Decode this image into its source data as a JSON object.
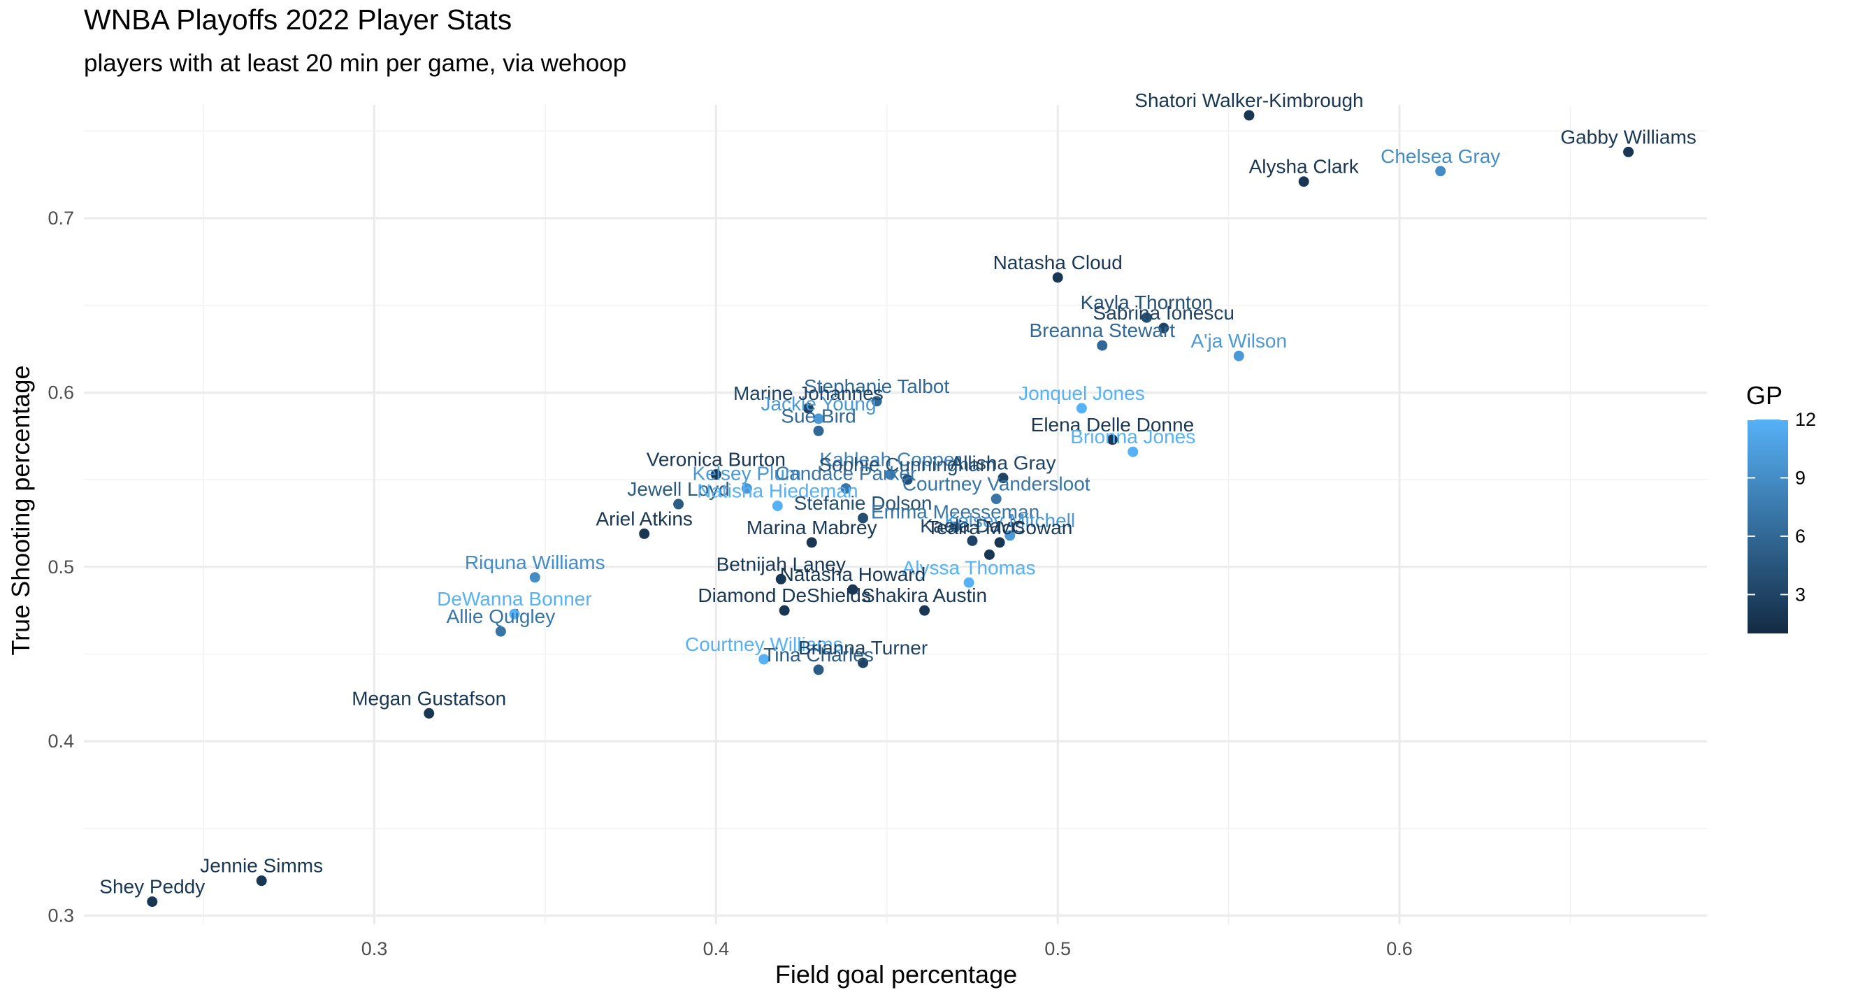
{
  "chart_data": {
    "type": "scatter",
    "title": "WNBA Playoffs 2022 Player Stats",
    "subtitle": "players with at least 20 min per game, via wehoop",
    "xlabel": "Field goal percentage",
    "ylabel": "True Shooting percentage",
    "xlim": [
      0.215,
      0.69
    ],
    "ylim": [
      0.295,
      0.765
    ],
    "x_ticks": [
      0.3,
      0.4,
      0.5,
      0.6
    ],
    "x_tick_labels": [
      "0.3",
      "0.4",
      "0.5",
      "0.6"
    ],
    "y_ticks": [
      0.3,
      0.4,
      0.5,
      0.6,
      0.7
    ],
    "y_tick_labels": [
      "0.3",
      "0.4",
      "0.5",
      "0.6",
      "0.7"
    ],
    "grid": true,
    "color_legend": {
      "title": "GP",
      "range": [
        1,
        12
      ],
      "ticks": [
        3,
        6,
        9,
        12
      ],
      "tick_labels": [
        "3",
        "6",
        "9",
        "12"
      ],
      "low_color": "#132B43",
      "high_color": "#56B1F7",
      "position": "right"
    },
    "points": [
      {
        "name": "Shatori Walker-Kimbrough",
        "x": 0.556,
        "y": 0.759,
        "gp": 2
      },
      {
        "name": "Gabby Williams",
        "x": 0.667,
        "y": 0.738,
        "gp": 2
      },
      {
        "name": "Chelsea Gray",
        "x": 0.612,
        "y": 0.727,
        "gp": 9
      },
      {
        "name": "Alysha Clark",
        "x": 0.572,
        "y": 0.721,
        "gp": 2
      },
      {
        "name": "Natasha Cloud",
        "x": 0.5,
        "y": 0.666,
        "gp": 2
      },
      {
        "name": "Kayla Thornton",
        "x": 0.526,
        "y": 0.643,
        "gp": 4
      },
      {
        "name": "Sabrina Ionescu",
        "x": 0.531,
        "y": 0.637,
        "gp": 3
      },
      {
        "name": "Breanna Stewart",
        "x": 0.513,
        "y": 0.627,
        "gp": 6
      },
      {
        "name": "A'ja Wilson",
        "x": 0.553,
        "y": 0.621,
        "gp": 10
      },
      {
        "name": "Stephanie Talbot",
        "x": 0.447,
        "y": 0.595,
        "gp": 6
      },
      {
        "name": "Marine Johannes",
        "x": 0.427,
        "y": 0.591,
        "gp": 3
      },
      {
        "name": "Jackie Young",
        "x": 0.43,
        "y": 0.585,
        "gp": 10
      },
      {
        "name": "Sue Bird",
        "x": 0.43,
        "y": 0.578,
        "gp": 6
      },
      {
        "name": "Jonquel Jones",
        "x": 0.507,
        "y": 0.591,
        "gp": 12
      },
      {
        "name": "Elena Delle Donne",
        "x": 0.516,
        "y": 0.573,
        "gp": 2
      },
      {
        "name": "Brionna Jones",
        "x": 0.522,
        "y": 0.566,
        "gp": 12
      },
      {
        "name": "Veronica Burton",
        "x": 0.4,
        "y": 0.553,
        "gp": 2
      },
      {
        "name": "Kahleah Copper",
        "x": 0.451,
        "y": 0.553,
        "gp": 8
      },
      {
        "name": "Sophie Cunningham",
        "x": 0.456,
        "y": 0.55,
        "gp": 4
      },
      {
        "name": "Allisha Gray",
        "x": 0.484,
        "y": 0.551,
        "gp": 3
      },
      {
        "name": "Kelsey Plum",
        "x": 0.409,
        "y": 0.545,
        "gp": 10
      },
      {
        "name": "Candace Parker",
        "x": 0.438,
        "y": 0.545,
        "gp": 7
      },
      {
        "name": "Courtney Vandersloot",
        "x": 0.482,
        "y": 0.539,
        "gp": 7
      },
      {
        "name": "Jewell Loyd",
        "x": 0.389,
        "y": 0.536,
        "gp": 5
      },
      {
        "name": "Natisha Hiedeman",
        "x": 0.418,
        "y": 0.535,
        "gp": 12
      },
      {
        "name": "Stefanie Dolson",
        "x": 0.443,
        "y": 0.528,
        "gp": 4
      },
      {
        "name": "Emma Meesseman",
        "x": 0.47,
        "y": 0.523,
        "gp": 7
      },
      {
        "name": "Kelsey Mitchell",
        "x": 0.486,
        "y": 0.518,
        "gp": 10
      },
      {
        "name": "Kaela Davis",
        "x": 0.475,
        "y": 0.515,
        "gp": 3
      },
      {
        "name": "Ariel Atkins",
        "x": 0.379,
        "y": 0.519,
        "gp": 2
      },
      {
        "name": "Marina Mabrey",
        "x": 0.428,
        "y": 0.514,
        "gp": 2
      },
      {
        "name": "Teaira McCowan",
        "x": 0.483,
        "y": 0.514,
        "gp": 2
      },
      {
        "name": "Riquna Williams",
        "x": 0.48,
        "y": 0.507,
        "gp": 2
      },
      {
        "name": "Riquna Williams",
        "x": 0.347,
        "y": 0.494,
        "gp": 9
      },
      {
        "name": "Betnijah Laney",
        "x": 0.419,
        "y": 0.493,
        "gp": 2
      },
      {
        "name": "Alyssa Thomas",
        "x": 0.474,
        "y": 0.491,
        "gp": 12
      },
      {
        "name": "Natasha Howard",
        "x": 0.44,
        "y": 0.487,
        "gp": 2
      },
      {
        "name": "Diamond DeShields",
        "x": 0.42,
        "y": 0.475,
        "gp": 2
      },
      {
        "name": "Shakira Austin",
        "x": 0.461,
        "y": 0.475,
        "gp": 2
      },
      {
        "name": "DeWanna Bonner",
        "x": 0.341,
        "y": 0.473,
        "gp": 12
      },
      {
        "name": "Allie Quigley",
        "x": 0.337,
        "y": 0.463,
        "gp": 7
      },
      {
        "name": "Courtney Williams",
        "x": 0.414,
        "y": 0.447,
        "gp": 12
      },
      {
        "name": "Tina Charles",
        "x": 0.43,
        "y": 0.441,
        "gp": 5
      },
      {
        "name": "Brianna Turner",
        "x": 0.443,
        "y": 0.445,
        "gp": 3
      },
      {
        "name": "Megan Gustafson",
        "x": 0.316,
        "y": 0.416,
        "gp": 2
      },
      {
        "name": "Jennie Simms",
        "x": 0.267,
        "y": 0.32,
        "gp": 2
      },
      {
        "name": "Shey Peddy",
        "x": 0.235,
        "y": 0.308,
        "gp": 2
      }
    ],
    "labels": [
      {
        "text": "Shatori Walker-Kimbrough",
        "x": 0.556,
        "y": 0.759,
        "gp": 2
      },
      {
        "text": "Gabby Williams",
        "x": 0.667,
        "y": 0.738,
        "gp": 2
      },
      {
        "text": "Chelsea Gray",
        "x": 0.612,
        "y": 0.727,
        "gp": 9
      },
      {
        "text": "Alysha Clark",
        "x": 0.572,
        "y": 0.721,
        "gp": 2
      },
      {
        "text": "Natasha Cloud",
        "x": 0.5,
        "y": 0.666,
        "gp": 2
      },
      {
        "text": "Kayla Thornton",
        "x": 0.526,
        "y": 0.643,
        "gp": 4
      },
      {
        "text": "Sabrina Ionescu",
        "x": 0.531,
        "y": 0.637,
        "gp": 3
      },
      {
        "text": "Breanna Stewart",
        "x": 0.513,
        "y": 0.627,
        "gp": 6
      },
      {
        "text": "A'ja Wilson",
        "x": 0.553,
        "y": 0.621,
        "gp": 10
      },
      {
        "text": "Stephanie Talbot",
        "x": 0.447,
        "y": 0.595,
        "gp": 6
      },
      {
        "text": "Marine Johannes",
        "x": 0.427,
        "y": 0.591,
        "gp": 3
      },
      {
        "text": "Jackie Young",
        "x": 0.43,
        "y": 0.585,
        "gp": 10
      },
      {
        "text": "Sue Bird",
        "x": 0.43,
        "y": 0.578,
        "gp": 6
      },
      {
        "text": "Jonquel Jones",
        "x": 0.507,
        "y": 0.591,
        "gp": 12
      },
      {
        "text": "Elena Delle Donne",
        "x": 0.516,
        "y": 0.573,
        "gp": 2
      },
      {
        "text": "Brionna Jones",
        "x": 0.522,
        "y": 0.566,
        "gp": 12
      },
      {
        "text": "Veronica Burton",
        "x": 0.4,
        "y": 0.553,
        "gp": 2
      },
      {
        "text": "Kahleah Copper",
        "x": 0.451,
        "y": 0.553,
        "gp": 8
      },
      {
        "text": "Sophie Cunningham",
        "x": 0.456,
        "y": 0.55,
        "gp": 4
      },
      {
        "text": "Allisha Gray",
        "x": 0.484,
        "y": 0.551,
        "gp": 3
      },
      {
        "text": "Kelsey Plum",
        "x": 0.409,
        "y": 0.545,
        "gp": 10
      },
      {
        "text": "Candace Parker",
        "x": 0.438,
        "y": 0.545,
        "gp": 7
      },
      {
        "text": "Courtney Vandersloot",
        "x": 0.482,
        "y": 0.539,
        "gp": 7
      },
      {
        "text": "Jewell Loyd",
        "x": 0.389,
        "y": 0.536,
        "gp": 5
      },
      {
        "text": "Natisha Hiedeman",
        "x": 0.418,
        "y": 0.535,
        "gp": 12
      },
      {
        "text": "Stefanie Dolson",
        "x": 0.443,
        "y": 0.528,
        "gp": 4
      },
      {
        "text": "Emma Meesseman",
        "x": 0.47,
        "y": 0.523,
        "gp": 7
      },
      {
        "text": "Kelsey Mitchell",
        "x": 0.486,
        "y": 0.518,
        "gp": 10
      },
      {
        "text": "Kaela Davis",
        "x": 0.475,
        "y": 0.515,
        "gp": 3
      },
      {
        "text": "Ariel Atkins",
        "x": 0.379,
        "y": 0.519,
        "gp": 2
      },
      {
        "text": "Marina Mabrey",
        "x": 0.428,
        "y": 0.514,
        "gp": 2
      },
      {
        "text": "Teaira McCowan",
        "x": 0.483,
        "y": 0.514,
        "gp": 2
      },
      {
        "text": "Riquna Williams",
        "x": 0.347,
        "y": 0.494,
        "gp": 9
      },
      {
        "text": "Betnijah Laney",
        "x": 0.419,
        "y": 0.493,
        "gp": 2
      },
      {
        "text": "Alyssa Thomas",
        "x": 0.474,
        "y": 0.491,
        "gp": 12
      },
      {
        "text": "Natasha Howard",
        "x": 0.44,
        "y": 0.487,
        "gp": 2
      },
      {
        "text": "Diamond DeShields",
        "x": 0.42,
        "y": 0.475,
        "gp": 2
      },
      {
        "text": "Shakira Austin",
        "x": 0.461,
        "y": 0.475,
        "gp": 2
      },
      {
        "text": "DeWanna Bonner",
        "x": 0.341,
        "y": 0.473,
        "gp": 12
      },
      {
        "text": "Allie Quigley",
        "x": 0.337,
        "y": 0.463,
        "gp": 7
      },
      {
        "text": "Courtney Williams",
        "x": 0.414,
        "y": 0.447,
        "gp": 12
      },
      {
        "text": "Tina Charles",
        "x": 0.43,
        "y": 0.441,
        "gp": 5
      },
      {
        "text": "Brianna Turner",
        "x": 0.443,
        "y": 0.445,
        "gp": 3
      },
      {
        "text": "Megan Gustafson",
        "x": 0.316,
        "y": 0.416,
        "gp": 2
      },
      {
        "text": "Jennie Simms",
        "x": 0.267,
        "y": 0.32,
        "gp": 2
      },
      {
        "text": "Shey Peddy",
        "x": 0.235,
        "y": 0.308,
        "gp": 2
      }
    ]
  }
}
